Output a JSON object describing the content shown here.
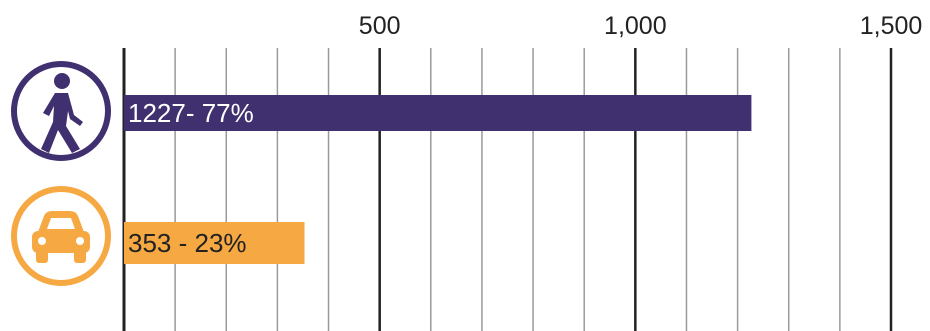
{
  "chart_data": {
    "type": "bar",
    "orientation": "horizontal",
    "title": "",
    "xlabel": "",
    "ylabel": "",
    "xlim": [
      0,
      1500
    ],
    "major_ticks": [
      500,
      1000,
      1500
    ],
    "tick_labels": [
      "500",
      "1,000",
      "1,500"
    ],
    "minor_tick_step": 100,
    "grid": true,
    "categories": [
      "walking-icon",
      "car-icon"
    ],
    "values": [
      1227,
      353
    ],
    "data_labels": [
      "1227- 77%",
      "353 - 23%"
    ],
    "colors": [
      "#40306f",
      "#f6a942"
    ],
    "label_colors": [
      "#ffffff",
      "#222222"
    ]
  }
}
